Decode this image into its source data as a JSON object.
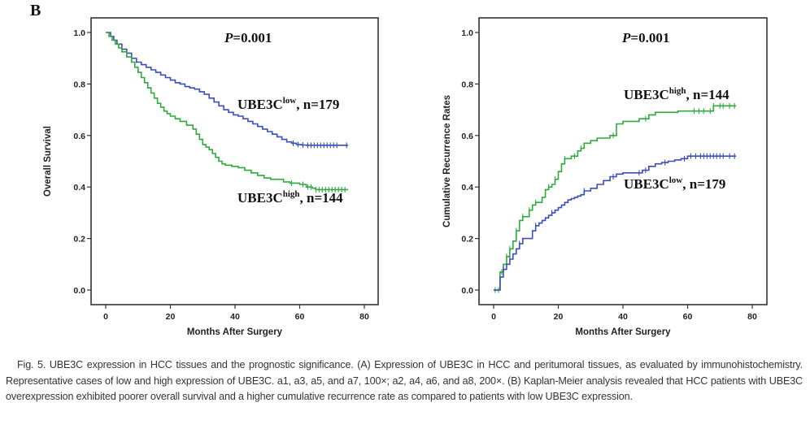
{
  "panel_label": "B",
  "caption": "Fig. 5. UBE3C expression in HCC tissues and the prognostic significance. (A) Expression of UBE3C in HCC and peritumoral tissues, as evaluated by immunohistochemistry. Representative cases of low and high expression of UBE3C. a1, a3, a5, and a7, 100×; a2, a4, a6, and a8, 200×. (B) Kaplan-Meier analysis revealed that HCC patients with UBE3C overexpression exhibited poorer overall survival and a higher cumulative recurrence rate as compared to patients with low UBE3C expression.",
  "colors": {
    "low": "#3a4fb5",
    "high": "#2eaa3c",
    "frame": "#333333"
  },
  "chart_data": [
    {
      "type": "line",
      "subtype": "kaplan-meier-step",
      "title": "",
      "annotation": {
        "p_label": "P",
        "p_value": "=0.001"
      },
      "xlabel": "Months After Surgery",
      "ylabel": "Overall Survival",
      "xlim": [
        0,
        80
      ],
      "ylim": [
        0,
        1
      ],
      "xticks": [
        "0",
        "20",
        "40",
        "60",
        "80"
      ],
      "yticks": [
        "0.0",
        "0.2",
        "0.4",
        "0.6",
        "0.8",
        "1.0"
      ],
      "grid": false,
      "series": [
        {
          "name": "UBE3C low, n=179",
          "label_main": "UBE3C",
          "label_sup": "low",
          "label_n": ", n=179",
          "color_key": "low",
          "x": [
            0,
            1.5,
            2.5,
            3.5,
            5,
            6.5,
            8,
            9.5,
            11,
            12.5,
            14,
            15.5,
            17,
            18.5,
            20,
            21.5,
            23,
            24.5,
            26,
            27.5,
            29,
            30.5,
            32,
            33.5,
            35,
            36.5,
            38,
            39.5,
            41,
            42.5,
            44,
            45.5,
            47,
            48.5,
            50,
            51.5,
            53,
            54.5,
            56,
            57.5,
            59,
            60.5,
            62,
            75
          ],
          "y": [
            1.0,
            0.985,
            0.97,
            0.955,
            0.935,
            0.92,
            0.9,
            0.885,
            0.875,
            0.865,
            0.855,
            0.845,
            0.835,
            0.825,
            0.815,
            0.805,
            0.8,
            0.79,
            0.785,
            0.78,
            0.77,
            0.76,
            0.745,
            0.73,
            0.715,
            0.7,
            0.69,
            0.68,
            0.675,
            0.665,
            0.655,
            0.645,
            0.635,
            0.625,
            0.615,
            0.605,
            0.595,
            0.585,
            0.575,
            0.57,
            0.565,
            0.563,
            0.562,
            0.562
          ],
          "censored_x": [
            58,
            59.5,
            61,
            62.5,
            63.5,
            64.5,
            65.5,
            66.5,
            67.5,
            68.5,
            69.5,
            70.5,
            71.5,
            74.5
          ]
        },
        {
          "name": "UBE3C high, n=144",
          "label_main": "UBE3C",
          "label_sup": "high",
          "label_n": ", n=144",
          "color_key": "high",
          "x": [
            0,
            1,
            2,
            3,
            4,
            5,
            6.5,
            8,
            9,
            10,
            11,
            12,
            13,
            14,
            15,
            16,
            17,
            18,
            19,
            20,
            21.5,
            23,
            25,
            27,
            28,
            29,
            30,
            31,
            32,
            33,
            34,
            35,
            36,
            37,
            39,
            41,
            43,
            45,
            47,
            49,
            51,
            55,
            57,
            60,
            62,
            64,
            65,
            75
          ],
          "y": [
            1.0,
            0.985,
            0.97,
            0.955,
            0.94,
            0.925,
            0.905,
            0.885,
            0.865,
            0.845,
            0.825,
            0.805,
            0.785,
            0.765,
            0.745,
            0.725,
            0.71,
            0.695,
            0.685,
            0.675,
            0.665,
            0.655,
            0.64,
            0.625,
            0.605,
            0.585,
            0.565,
            0.555,
            0.545,
            0.53,
            0.515,
            0.5,
            0.49,
            0.485,
            0.48,
            0.475,
            0.465,
            0.455,
            0.445,
            0.435,
            0.43,
            0.42,
            0.415,
            0.41,
            0.4,
            0.395,
            0.39,
            0.39
          ],
          "censored_x": [
            57.5,
            61,
            62.5,
            63.5,
            65,
            66,
            67,
            68,
            69,
            70,
            71,
            72,
            73,
            74
          ]
        }
      ]
    },
    {
      "type": "line",
      "subtype": "kaplan-meier-step",
      "title": "",
      "annotation": {
        "p_label": "P",
        "p_value": "=0.001"
      },
      "xlabel": "Months After Surgery",
      "ylabel": "Cumulative Recurrence Rates",
      "xlim": [
        0,
        80
      ],
      "ylim": [
        0,
        1
      ],
      "xticks": [
        "0",
        "20",
        "40",
        "60",
        "80"
      ],
      "yticks": [
        "0.0",
        "0.2",
        "0.4",
        "0.6",
        "0.8",
        "1.0"
      ],
      "grid": false,
      "series": [
        {
          "name": "UBE3C high, n=144",
          "label_main": "UBE3C",
          "label_sup": "high",
          "label_n": ", n=144",
          "color_key": "high",
          "x": [
            0,
            2,
            3,
            4,
            5,
            6,
            7,
            8,
            9,
            10,
            11,
            12,
            13,
            14,
            15,
            16,
            17,
            18,
            19,
            20,
            21,
            22,
            24,
            26,
            27,
            28,
            30,
            32,
            36,
            38,
            40,
            45,
            48,
            50,
            57,
            68,
            75
          ],
          "y": [
            0.0,
            0.07,
            0.1,
            0.13,
            0.16,
            0.19,
            0.23,
            0.27,
            0.285,
            0.285,
            0.31,
            0.33,
            0.34,
            0.34,
            0.36,
            0.39,
            0.4,
            0.41,
            0.43,
            0.46,
            0.49,
            0.51,
            0.52,
            0.54,
            0.55,
            0.57,
            0.58,
            0.59,
            0.6,
            0.645,
            0.655,
            0.665,
            0.68,
            0.69,
            0.695,
            0.715,
            0.715
          ],
          "censored_x": [
            0.5,
            1.5,
            2.5,
            4,
            5,
            7,
            9,
            11,
            13,
            17,
            19,
            22,
            25,
            27,
            37,
            47,
            62,
            63.5,
            65,
            67,
            68,
            70,
            71,
            73,
            74.5
          ]
        },
        {
          "name": "UBE3C low, n=179",
          "label_main": "UBE3C",
          "label_sup": "low",
          "label_n": ", n=179",
          "color_key": "low",
          "x": [
            0,
            2,
            3,
            4,
            5,
            6,
            7,
            8,
            9,
            10,
            12,
            13,
            14,
            15,
            16,
            17,
            18,
            19,
            20,
            21,
            22,
            23,
            24,
            25,
            26,
            27,
            28,
            30,
            32,
            34,
            36,
            38,
            40,
            44,
            46,
            48,
            50,
            52,
            54,
            56,
            58,
            60,
            75
          ],
          "y": [
            0.0,
            0.05,
            0.08,
            0.1,
            0.12,
            0.14,
            0.16,
            0.18,
            0.2,
            0.2,
            0.23,
            0.25,
            0.26,
            0.27,
            0.28,
            0.29,
            0.3,
            0.31,
            0.32,
            0.33,
            0.34,
            0.35,
            0.355,
            0.36,
            0.365,
            0.37,
            0.385,
            0.395,
            0.41,
            0.425,
            0.44,
            0.45,
            0.455,
            0.455,
            0.465,
            0.48,
            0.49,
            0.495,
            0.5,
            0.505,
            0.51,
            0.52,
            0.52
          ],
          "censored_x": [
            3,
            5,
            8,
            13,
            18,
            28,
            37,
            45,
            47,
            53,
            59,
            61,
            62.5,
            64,
            65,
            66,
            67,
            68,
            69,
            70,
            71,
            73,
            74.5
          ]
        }
      ]
    }
  ]
}
